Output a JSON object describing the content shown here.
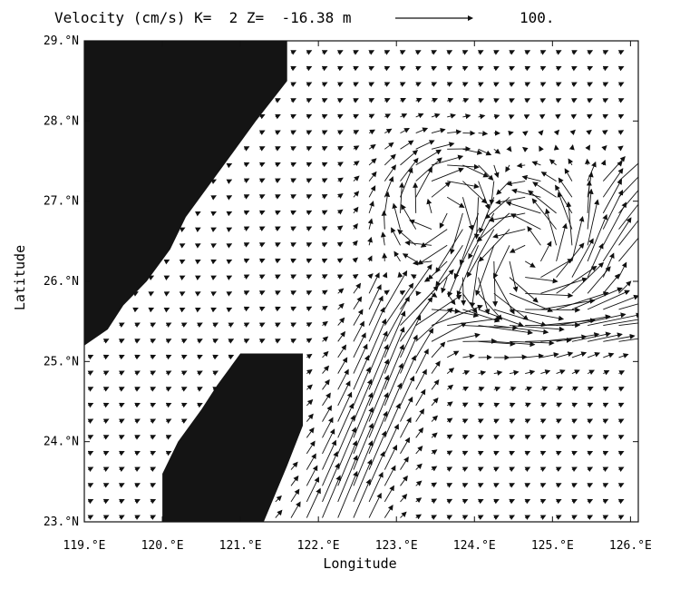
{
  "title": "Velocity (cm/s) K=  2 Z=  -16.38 m",
  "reference_vector": {
    "value": "100.",
    "magnitude": 100,
    "units": "cm/s"
  },
  "x_axis": {
    "label": "Longitude",
    "ticks": [
      "119.°E",
      "120.°E",
      "121.°E",
      "122.°E",
      "123.°E",
      "124.°E",
      "125.°E",
      "126.°E"
    ],
    "range": [
      119.0,
      126.1
    ]
  },
  "y_axis": {
    "label": "Latitude",
    "ticks": [
      "23.°N",
      "24.°N",
      "25.°N",
      "26.°N",
      "27.°N",
      "28.°N",
      "29.°N"
    ],
    "range": [
      23.0,
      29.0
    ]
  },
  "colors": {
    "land": "#141414",
    "vector": "#111111",
    "background": "#ffffff"
  },
  "land_masks": [
    {
      "name": "mainland-china",
      "polygon": [
        [
          119.0,
          29.0
        ],
        [
          121.6,
          29.0
        ],
        [
          121.6,
          28.5
        ],
        [
          121.2,
          28.0
        ],
        [
          120.9,
          27.6
        ],
        [
          120.6,
          27.2
        ],
        [
          120.3,
          26.8
        ],
        [
          120.1,
          26.4
        ],
        [
          119.8,
          26.0
        ],
        [
          119.5,
          25.7
        ],
        [
          119.3,
          25.4
        ],
        [
          119.0,
          25.2
        ]
      ]
    },
    {
      "name": "taiwan-island",
      "polygon": [
        [
          121.0,
          25.1
        ],
        [
          121.8,
          25.1
        ],
        [
          121.8,
          24.2
        ],
        [
          121.6,
          23.7
        ],
        [
          121.3,
          23.0
        ],
        [
          120.0,
          23.0
        ],
        [
          120.0,
          23.6
        ],
        [
          120.2,
          24.0
        ],
        [
          120.5,
          24.4
        ],
        [
          120.7,
          24.7
        ]
      ]
    }
  ],
  "flow_field": {
    "grid_spacing_deg": 0.2,
    "background_current": {
      "u": 6,
      "v": 3
    },
    "kuroshio_jet": {
      "start": [
        122.2,
        23.0
      ],
      "end": [
        123.0,
        25.4
      ],
      "speed": 60,
      "width_deg": 0.35
    },
    "eastward_branch": {
      "lat": 25.45,
      "from_lon": 123.0,
      "to_lon": 126.0,
      "speed": 55,
      "width_deg": 0.18
    },
    "cyclonic_eddy": {
      "center": [
        124.7,
        26.3
      ],
      "radius_deg": 0.75,
      "speed": 45
    },
    "anticyclonic_eddy": {
      "center": [
        123.6,
        26.9
      ],
      "radius_deg": 0.6,
      "speed": 35
    },
    "northeast_outflow": {
      "region": [
        125.2,
        26.2,
        126.1,
        27.4
      ],
      "speed": 45
    }
  }
}
